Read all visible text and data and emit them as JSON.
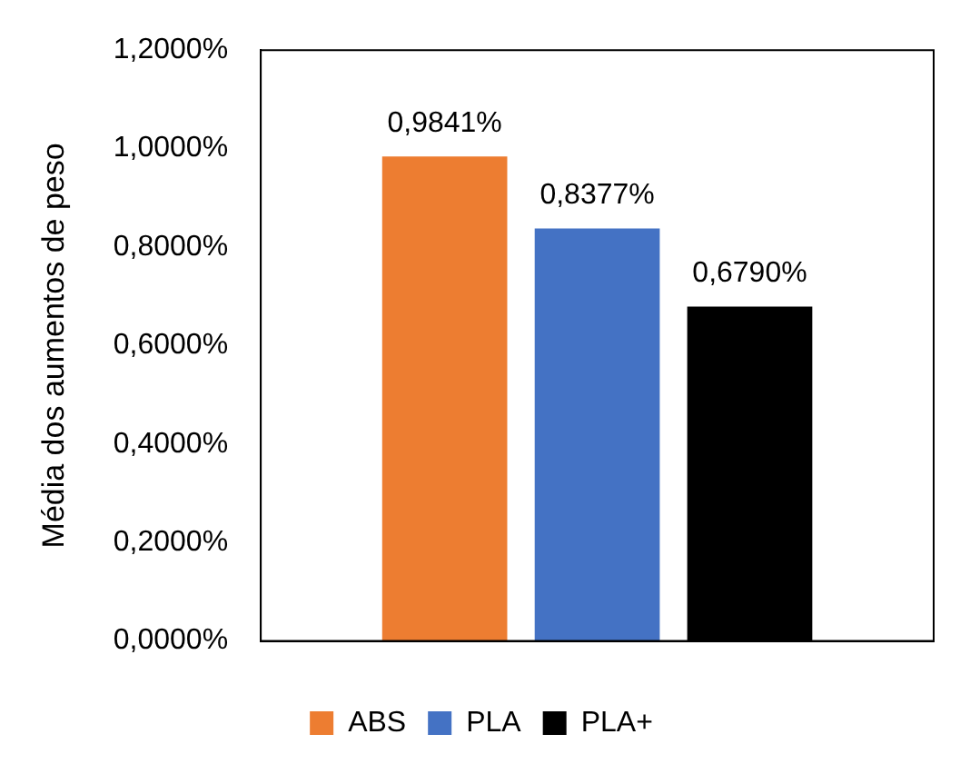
{
  "chart_data": {
    "type": "bar",
    "ylabel": "Média dos aumentos de peso",
    "categories": [
      null
    ],
    "series": [
      {
        "name": "ABS",
        "color": "#ed7d31",
        "values": [
          0.9841
        ],
        "value_labels": [
          "0,9841%"
        ]
      },
      {
        "name": "PLA",
        "color": "#4472c4",
        "values": [
          0.8377
        ],
        "value_labels": [
          "0,8377%"
        ]
      },
      {
        "name": "PLA+",
        "color": "#000000",
        "values": [
          0.679
        ],
        "value_labels": [
          "0,6790%"
        ]
      }
    ],
    "ylim": [
      0,
      1.2
    ],
    "yticks": [
      {
        "value": 0,
        "label": "0,0000%"
      },
      {
        "value": 0.2,
        "label": "0,2000%"
      },
      {
        "value": 0.4,
        "label": "0,4000%"
      },
      {
        "value": 0.6,
        "label": "0,6000%"
      },
      {
        "value": 0.8,
        "label": "0,8000%"
      },
      {
        "value": 1,
        "label": "1,0000%"
      },
      {
        "value": 1.2,
        "label": "1,2000%"
      }
    ],
    "grid": false,
    "legend": "bottom"
  }
}
